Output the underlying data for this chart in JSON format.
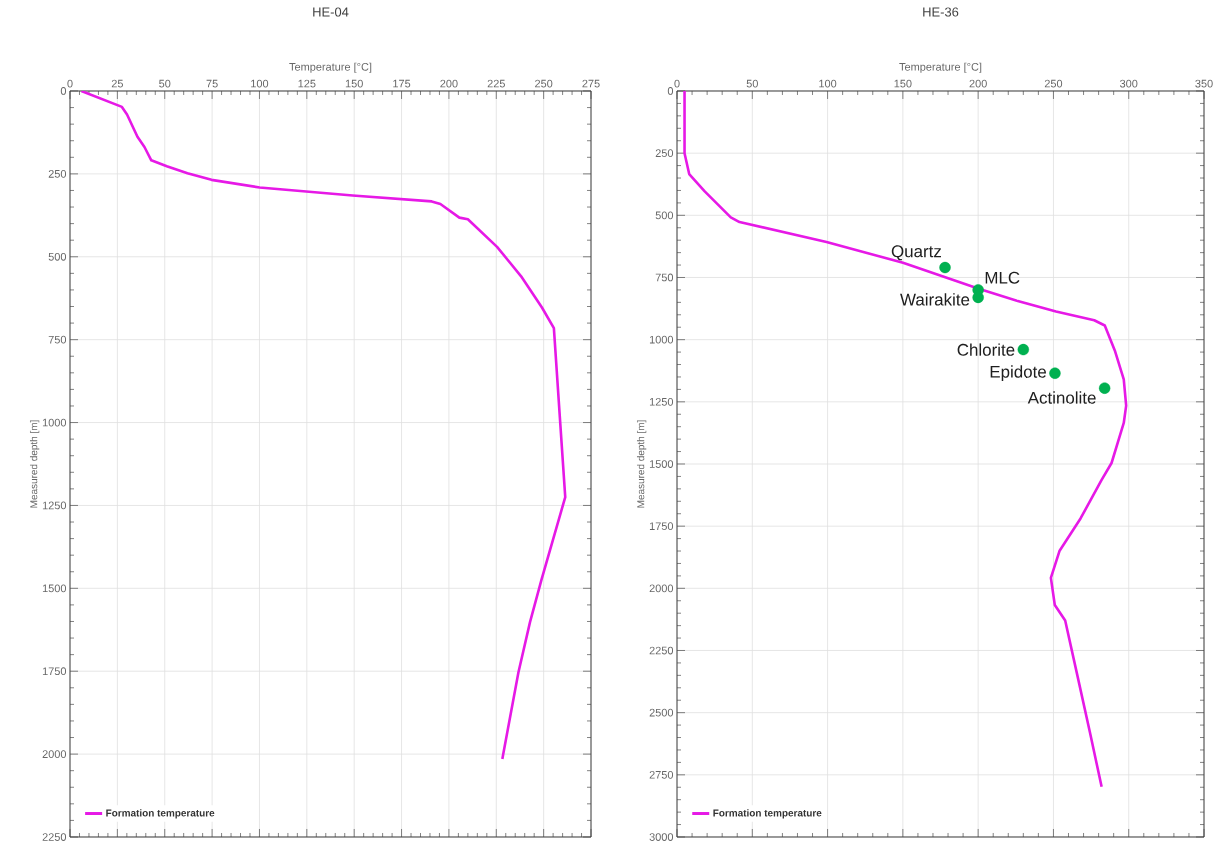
{
  "chart_data": [
    {
      "type": "line",
      "title": "HE-04",
      "xlabel": "Temperature [°C]",
      "ylabel": "Measured depth [m]",
      "xlim": [
        0,
        275
      ],
      "xticks": [
        0,
        25,
        50,
        75,
        100,
        125,
        150,
        175,
        200,
        225,
        250,
        275
      ],
      "ylim": [
        2250,
        0
      ],
      "yticks": [
        0,
        250,
        500,
        750,
        1000,
        1250,
        1500,
        1750,
        2000,
        2250
      ],
      "grid": true,
      "legend": "bottom left",
      "series": [
        {
          "name": "Formation temperature",
          "type": "line",
          "color": "#e619e6",
          "x": [
            6,
            27.4,
            30.1,
            35.6,
            39.3,
            42.9,
            51.1,
            62,
            74.7,
            100.1,
            149.2,
            190.9,
            195.5,
            205.5,
            210,
            225.4,
            238.1,
            249.1,
            255.4,
            258.5,
            261.4,
            248.8,
            242.8,
            236.7,
            228.6,
            228.2
          ],
          "values": [
            0,
            48,
            71,
            138,
            169,
            209,
            227,
            248,
            268,
            291,
            315,
            333,
            341,
            382,
            387,
            470,
            559,
            653,
            715,
            980,
            1225,
            1475,
            1602,
            1753,
            2002,
            2015
          ]
        }
      ]
    },
    {
      "type": "line",
      "title": "HE-36",
      "xlabel": "Temperature [°C]",
      "ylabel": "Measured depth [m]",
      "xlim": [
        0,
        350
      ],
      "xticks": [
        0,
        50,
        100,
        150,
        200,
        250,
        300,
        350
      ],
      "ylim": [
        3000,
        0
      ],
      "yticks": [
        0,
        250,
        500,
        750,
        1000,
        1250,
        1500,
        1750,
        2000,
        2250,
        2500,
        2750,
        3000
      ],
      "grid": true,
      "legend": "bottom left",
      "series": [
        {
          "name": "Formation temperature",
          "type": "line",
          "color": "#e619e6",
          "x": [
            5,
            5,
            8.1,
            18.4,
            35.7,
            41.5,
            99.3,
            150.1,
            200.9,
            226.3,
            251.7,
            277.1,
            284.1,
            291,
            296.7,
            298.3,
            296.7,
            288.6,
            282,
            268,
            254,
            248.3,
            250.9,
            257.8,
            265.4,
            274.4,
            282
          ],
          "values": [
            0,
            250,
            334,
            404,
            508,
            527,
            607,
            691,
            796,
            845,
            887,
            922,
            943,
            1048,
            1160,
            1265,
            1335,
            1496,
            1564,
            1719,
            1850,
            1958,
            2067,
            2129,
            2337,
            2584,
            2798
          ]
        },
        {
          "type": "scatter",
          "marker": "circle",
          "color": "#00b050",
          "x": [
            178,
            200,
            200,
            230,
            251,
            284
          ],
          "values": [
            710,
            800,
            830,
            1040,
            1135,
            1195
          ]
        }
      ],
      "annotations": [
        {
          "text": "Quartz",
          "x": 178,
          "y": 710
        },
        {
          "text": "MLC",
          "x": 200,
          "y": 800
        },
        {
          "text": "Wairakite",
          "x": 200,
          "y": 830
        },
        {
          "text": "Chlorite",
          "x": 230,
          "y": 1040
        },
        {
          "text": "Epidote",
          "x": 251,
          "y": 1135
        },
        {
          "text": "Actinolite",
          "x": 284,
          "y": 1195
        }
      ]
    }
  ]
}
